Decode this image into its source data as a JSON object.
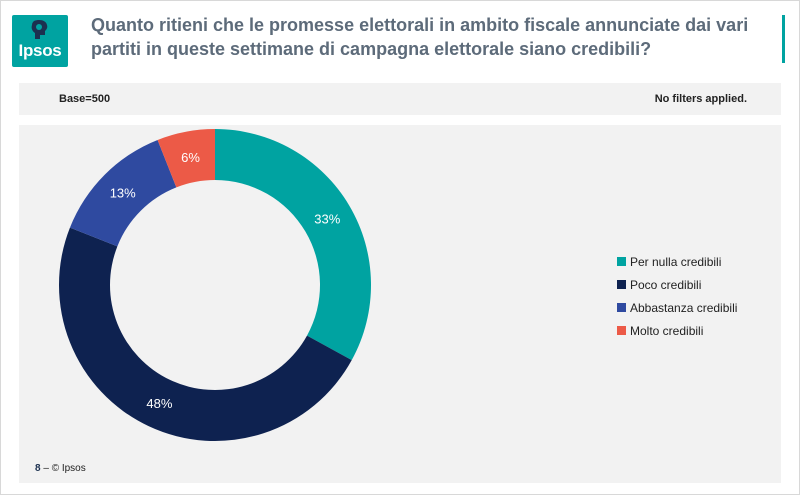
{
  "header": {
    "logo_text": "Ipsos",
    "title": "Quanto ritieni che le promesse elettorali in ambito fiscale annunciate dai vari partiti in queste settimane di campagna elettorale siano credibili?"
  },
  "info": {
    "base": "Base=500",
    "filters": "No filters applied."
  },
  "footer": {
    "page": "8",
    "separator": "–",
    "copyright": "© Ipsos"
  },
  "chart_data": {
    "type": "pie",
    "variant": "donut",
    "start_angle_deg": 0,
    "direction": "clockwise",
    "legend_position": "right",
    "categories": [
      "Per nulla credibili",
      "Poco credibili",
      "Abbastanza credibili",
      "Molto credibili"
    ],
    "values": [
      33,
      48,
      13,
      6
    ],
    "labels": [
      "33%",
      "48%",
      "13%",
      "6%"
    ],
    "colors": [
      "#00a3a1",
      "#0e2250",
      "#2f4aa0",
      "#ec5a47"
    ]
  }
}
